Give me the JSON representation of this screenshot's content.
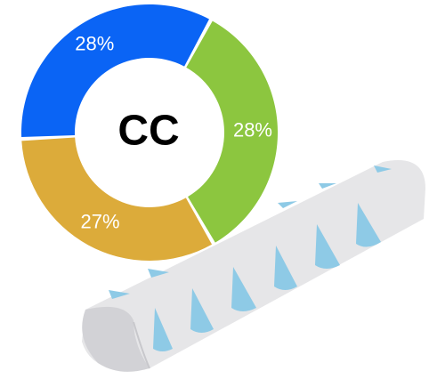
{
  "chart_data": {
    "type": "pie",
    "donut": true,
    "center_text": "CC",
    "values": [
      28,
      28,
      27
    ],
    "value_labels": [
      "28%",
      "28%",
      "27%"
    ],
    "colors": [
      "#0a64f5",
      "#8cc63f",
      "#dcab3a"
    ]
  }
}
